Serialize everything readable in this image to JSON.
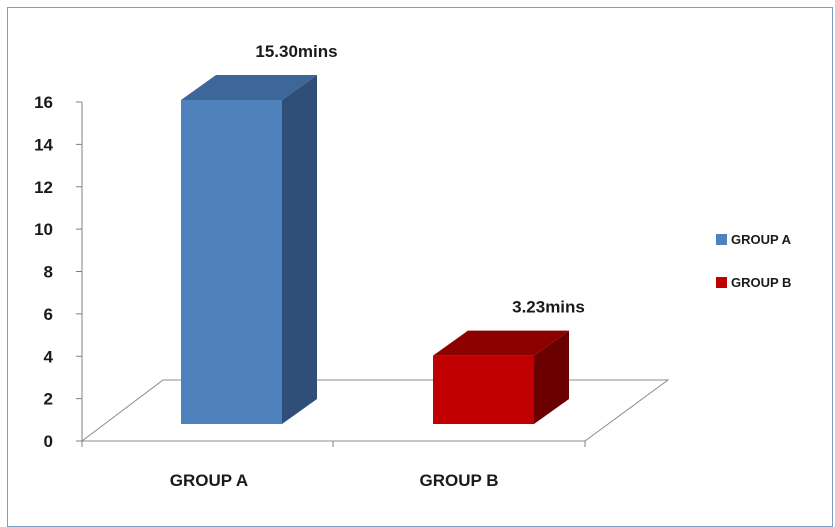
{
  "chart_data": {
    "type": "bar",
    "style": "3d-column",
    "categories": [
      "GROUP A",
      "GROUP B"
    ],
    "values": [
      15.3,
      3.23
    ],
    "data_labels": [
      "15.30mins",
      "3.23mins"
    ],
    "ylim": [
      0,
      16
    ],
    "yticks": [
      "0",
      "2",
      "4",
      "6",
      "8",
      "10",
      "12",
      "14",
      "16"
    ],
    "grid": false,
    "legend_position": "right",
    "legend": [
      {
        "label": "GROUP A",
        "color": "#4f81bd"
      },
      {
        "label": "GROUP B",
        "color": "#c00000"
      }
    ],
    "colors": {
      "group_a_front": "#4f81bd",
      "group_a_side": "#2f4f78",
      "group_a_top": "#3d6799",
      "group_b_front": "#c00000",
      "group_b_side": "#6b0000",
      "group_b_top": "#8c0000",
      "frame_border": "#7f9ec4",
      "axis": "#808080"
    }
  }
}
